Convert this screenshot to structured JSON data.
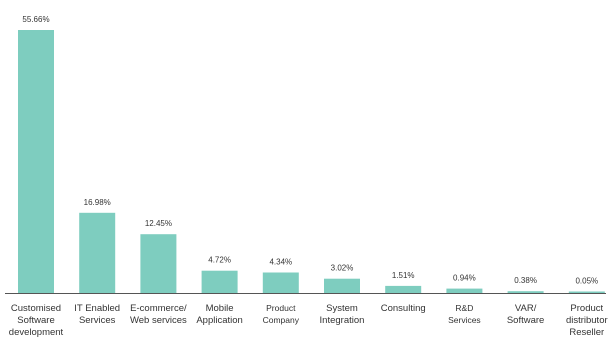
{
  "chart_data": {
    "type": "bar",
    "categories": [
      [
        "Customised",
        "Software",
        "development"
      ],
      [
        "IT Enabled",
        "Services"
      ],
      [
        "E-commerce/",
        "Web services"
      ],
      [
        "Mobile",
        "Application"
      ],
      [
        "Product",
        "Company"
      ],
      [
        "System",
        "Integration"
      ],
      [
        "Consulting"
      ],
      [
        "R&D",
        "Services"
      ],
      [
        "VAR/",
        "Software"
      ],
      [
        "Product",
        "distributor",
        "Reseller"
      ]
    ],
    "values": [
      55.66,
      16.98,
      12.45,
      4.72,
      4.34,
      3.02,
      1.51,
      0.94,
      0.38,
      0.05
    ],
    "value_labels": [
      "55.66%",
      "16.98%",
      "12.45%",
      "4.72%",
      "4.34%",
      "3.02%",
      "1.51%",
      "0.94%",
      "0.38%",
      "0.05%"
    ],
    "title": "",
    "xlabel": "",
    "ylabel": "",
    "bar_color": "#7ecdbf",
    "axis_color": "#555555",
    "grid": false,
    "legend": "none"
  }
}
